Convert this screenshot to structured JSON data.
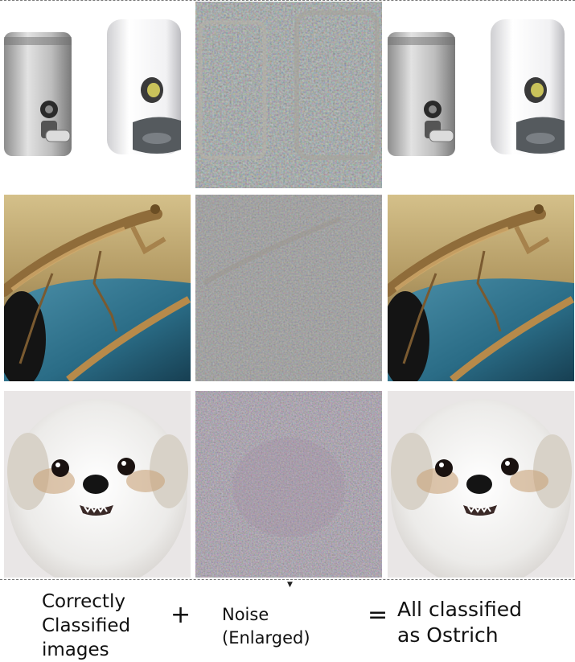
{
  "captions": {
    "original": "Correctly\nClassified\nimages",
    "plus": "+",
    "noise": "Noise\n(Enlarged)",
    "equals": "=",
    "result": "All classified\nas Ostrich"
  },
  "rows": [
    {
      "subject": "soap-dispensers"
    },
    {
      "subject": "praying-mantis"
    },
    {
      "subject": "white-dog"
    }
  ],
  "colors": {
    "noise_gray": "#8a8a8a",
    "mantis_sky": "#c9b27a",
    "mantis_car": "#2e6e86",
    "dog_bg": "#e9e6e6"
  },
  "icons": [
    "move-handle-icon"
  ]
}
